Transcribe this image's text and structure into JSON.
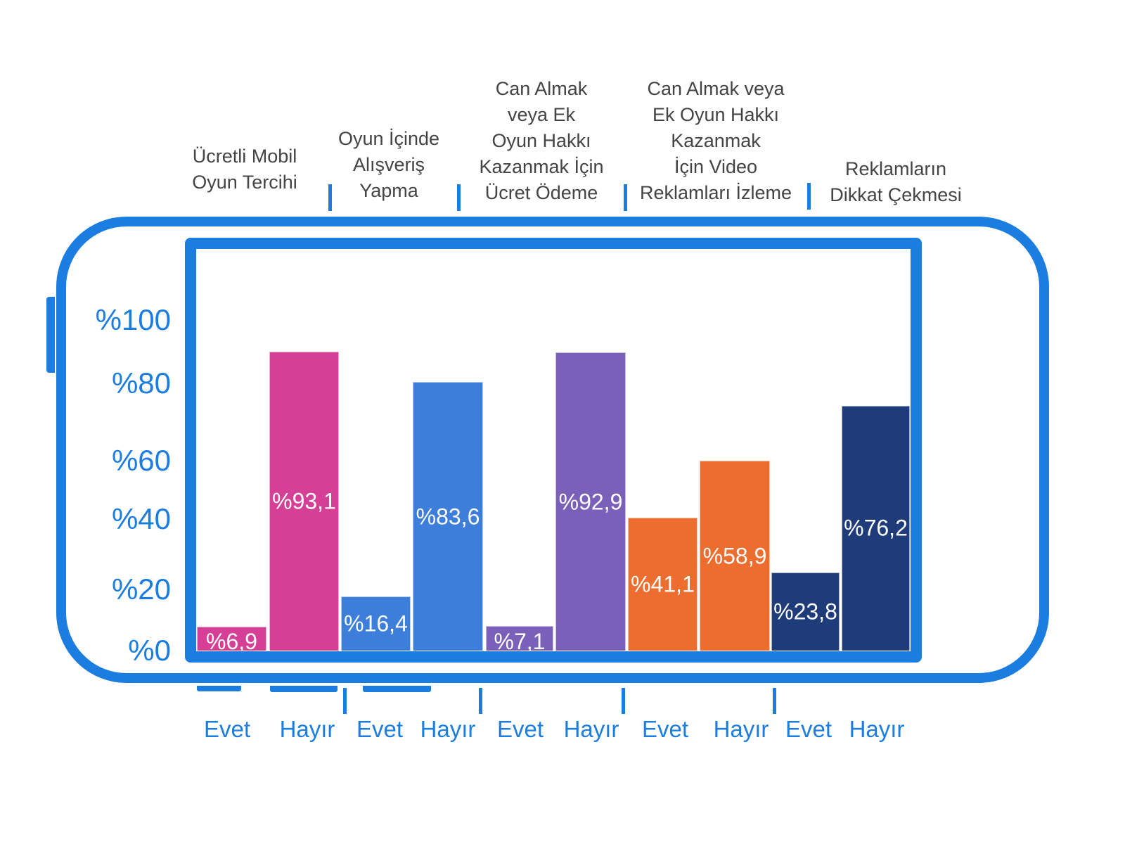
{
  "chart_data": {
    "type": "bar",
    "title": "",
    "xlabel": "",
    "ylabel": "",
    "ylim": [
      0,
      100
    ],
    "y_ticks": [
      "%0",
      "%20",
      "%40",
      "%60",
      "%80",
      "%100"
    ],
    "grid": false,
    "groups": [
      {
        "label": "Ücretli Mobil\nOyun Tercihi",
        "color": "#d53f95",
        "bars": [
          {
            "label": "Evet",
            "value": 6.9,
            "text": "%6,9"
          },
          {
            "label": "Hayır",
            "value": 93.1,
            "text": "%93,1"
          }
        ]
      },
      {
        "label": "Oyun İçinde\nAlışveriş\nYapma",
        "color": "#3d7edb",
        "bars": [
          {
            "label": "Evet",
            "value": 16.4,
            "text": "%16,4"
          },
          {
            "label": "Hayır",
            "value": 83.6,
            "text": "%83,6"
          }
        ]
      },
      {
        "label": "Can Almak\nveya Ek\nOyun Hakkı\nKazanmak İçin\nÜcret Ödeme",
        "color": "#7a60b8",
        "bars": [
          {
            "label": "Evet",
            "value": 7.1,
            "text": "%7,1"
          },
          {
            "label": "Hayır",
            "value": 92.9,
            "text": "%92,9"
          }
        ]
      },
      {
        "label": "Can Almak veya\nEk Oyun Hakkı\nKazanmak\nİçin Video\nReklamları İzleme",
        "color": "#ec6d2e",
        "bars": [
          {
            "label": "Evet",
            "value": 41.1,
            "text": "%41,1"
          },
          {
            "label": "Hayır",
            "value": 58.9,
            "text": "%58,9"
          }
        ]
      },
      {
        "label": "Reklamların\nDikkat Çekmesi",
        "color": "#1f3c7a",
        "bars": [
          {
            "label": "Evet",
            "value": 23.8,
            "text": "%23,8"
          },
          {
            "label": "Hayır",
            "value": 76.2,
            "text": "%76,2"
          }
        ]
      }
    ]
  },
  "colors": {
    "frame": "#1b7de0"
  }
}
